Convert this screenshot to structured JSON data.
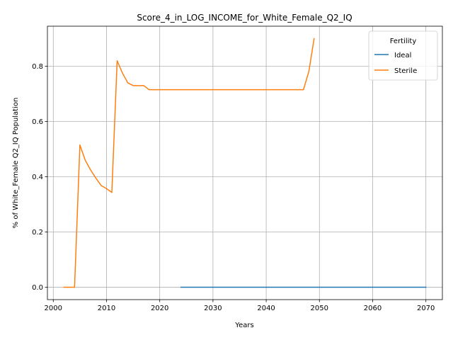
{
  "chart_data": {
    "type": "line",
    "title": "Score_4_in_LOG_INCOME_for_White_Female_Q2_IQ",
    "xlabel": "Years",
    "ylabel": "% of White_Female Q2_IQ Population",
    "xlim": [
      1998.9,
      2073.1
    ],
    "ylim": [
      -0.045,
      0.945
    ],
    "xticks": [
      2000,
      2010,
      2020,
      2030,
      2040,
      2050,
      2060,
      2070
    ],
    "yticks": [
      0.0,
      0.2,
      0.4,
      0.6,
      0.8
    ],
    "ytick_labels": [
      "0.0",
      "0.2",
      "0.4",
      "0.6",
      "0.8"
    ],
    "grid": true,
    "legend": {
      "title": "Fertility",
      "placement": "top-right"
    },
    "series": [
      {
        "name": "Ideal",
        "color": "#1f77b4",
        "x": [
          2024,
          2070
        ],
        "y": [
          0.0,
          0.0
        ]
      },
      {
        "name": "Sterile",
        "color": "#ff7f0e",
        "x": [
          2002,
          2003,
          2004,
          2005,
          2006,
          2007,
          2008,
          2009,
          2010,
          2011,
          2012,
          2013,
          2014,
          2015,
          2016,
          2017,
          2018,
          2019,
          2020,
          2030,
          2040,
          2045,
          2046,
          2047,
          2048,
          2049
        ],
        "y": [
          0.0,
          0.0,
          0.0,
          0.515,
          0.46,
          0.425,
          0.395,
          0.368,
          0.357,
          0.343,
          0.82,
          0.775,
          0.74,
          0.73,
          0.73,
          0.73,
          0.715,
          0.715,
          0.715,
          0.715,
          0.715,
          0.715,
          0.715,
          0.715,
          0.78,
          0.9
        ]
      }
    ]
  }
}
